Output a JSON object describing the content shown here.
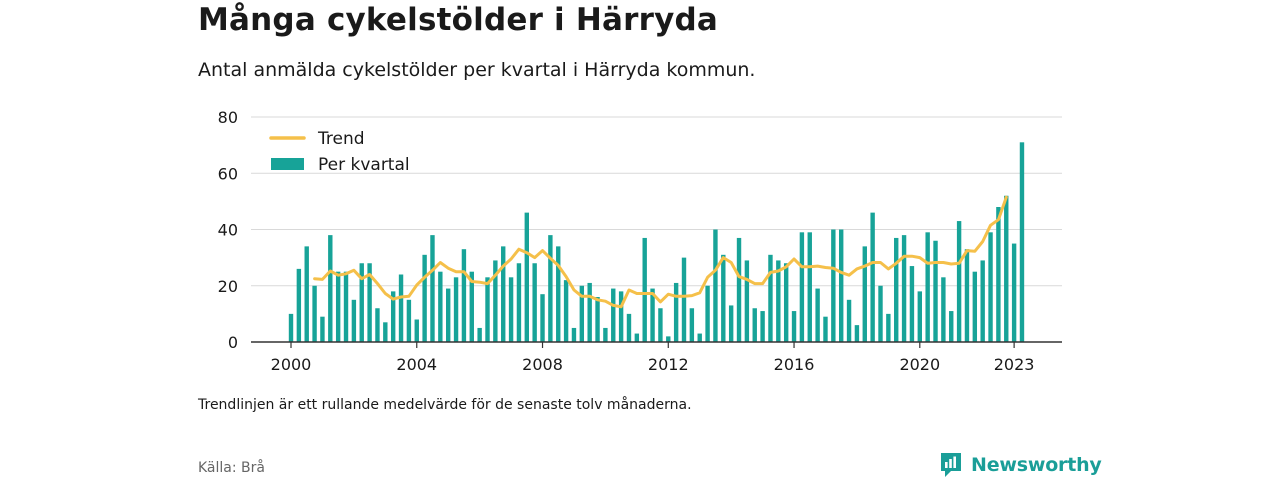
{
  "header": {
    "title": "Många cykelstölder i Härryda",
    "subtitle": "Antal anmälda cykelstölder per kvartal i Härryda kommun."
  },
  "footer": {
    "note": "Trendlinjen är ett rullande medelvärde för de senaste tolv månaderna.",
    "source": "Källa: Brå",
    "brand": "Newsworthy"
  },
  "colors": {
    "bar": "#17a398",
    "trend": "#f5c04a",
    "grid": "#d9d9d9",
    "axis": "#333333",
    "brand": "#1a9e98"
  },
  "chart_data": {
    "type": "bar",
    "xlabel": "",
    "ylabel": "",
    "ylim": [
      0,
      80
    ],
    "yticks": [
      0,
      20,
      40,
      60,
      80
    ],
    "xticks": [
      "2000",
      "2004",
      "2008",
      "2012",
      "2016",
      "2020",
      "2023"
    ],
    "grid": true,
    "legend_position": "top-left",
    "start_year": 2000,
    "series": [
      {
        "name": "Per kvartal",
        "kind": "bar",
        "values": [
          10,
          26,
          34,
          20,
          9,
          38,
          25,
          25,
          15,
          28,
          28,
          12,
          7,
          18,
          24,
          15,
          8,
          31,
          38,
          25,
          19,
          23,
          33,
          25,
          5,
          23,
          29,
          34,
          23,
          28,
          46,
          28,
          17,
          38,
          34,
          22,
          5,
          20,
          21,
          16,
          5,
          19,
          18,
          10,
          3,
          37,
          19,
          12,
          2,
          21,
          30,
          12,
          3,
          20,
          40,
          31,
          13,
          37,
          29,
          12,
          11,
          31,
          29,
          28,
          11,
          39,
          39,
          19,
          9,
          40,
          40,
          15,
          6,
          34,
          46,
          20,
          10,
          37,
          38,
          27,
          18,
          39,
          36,
          23,
          11,
          43,
          33,
          25,
          29,
          39,
          48,
          52,
          35,
          71
        ]
      },
      {
        "name": "Trend",
        "kind": "line",
        "start_index": 3,
        "values": [
          22.5,
          22.25,
          25.25,
          23.75,
          24.25,
          25.5,
          22.5,
          24,
          20.75,
          17.25,
          15.25,
          16,
          16.25,
          20.25,
          23,
          25.5,
          28.25,
          26.25,
          25,
          25,
          21.5,
          21.25,
          20.75,
          23.75,
          27,
          29.5,
          33,
          31.75,
          30,
          32.5,
          29.75,
          27.25,
          23.25,
          18.5,
          16.25,
          16.25,
          15,
          14.5,
          13,
          12.5,
          18.5,
          17.25,
          17.25,
          17.25,
          14.25,
          17,
          16.25,
          16.25,
          16.5,
          17.5,
          23,
          25.5,
          30,
          28.25,
          23.25,
          22.25,
          20.75,
          20.75,
          24.75,
          25.25,
          26.75,
          29.5,
          26.75,
          26.75,
          27,
          26.5,
          26.25,
          24.75,
          23.75,
          26,
          27,
          28.25,
          28.25,
          26,
          28,
          30.5,
          30.5,
          30,
          28,
          28.25,
          28.25,
          27.75,
          28,
          32.5,
          32.25,
          35.75,
          41.5,
          43.5,
          51.5
        ]
      }
    ]
  }
}
